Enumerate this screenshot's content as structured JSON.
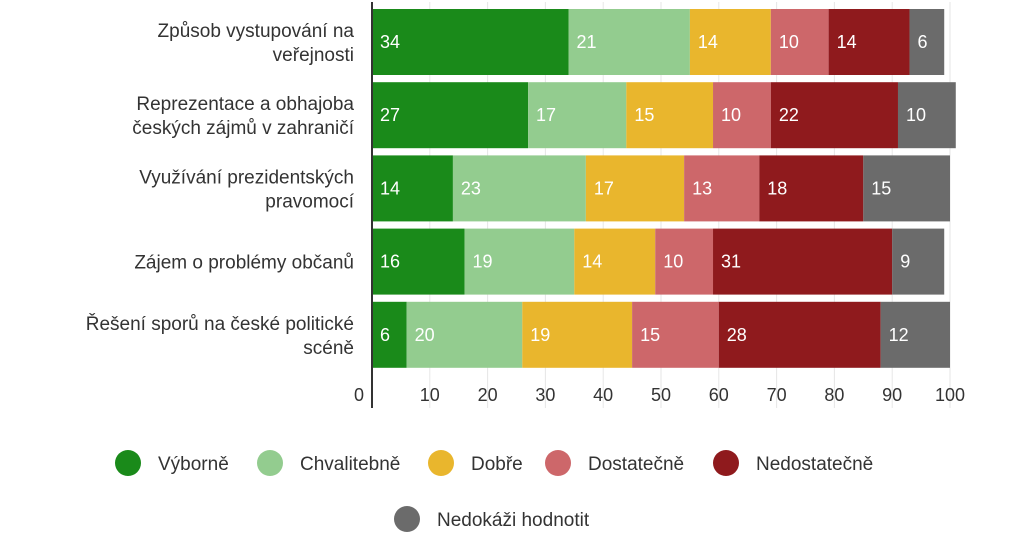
{
  "chart_data": {
    "type": "bar",
    "orientation": "horizontal",
    "stacked": true,
    "categories": [
      [
        "Způsob vystupování na",
        "veřejnosti"
      ],
      [
        "Reprezentace a obhajoba",
        "českých zájmů v zahraničí"
      ],
      [
        "Využívání prezidentských",
        "pravomocí"
      ],
      [
        "Zájem o problémy občanů"
      ],
      [
        "Řešení sporů na české politické",
        "scéně"
      ]
    ],
    "series": [
      {
        "name": "Výborně",
        "color": "#1a8a1a",
        "values": [
          34,
          27,
          14,
          16,
          6
        ]
      },
      {
        "name": "Chvalitebně",
        "color": "#93cc8f",
        "values": [
          21,
          17,
          23,
          19,
          20
        ]
      },
      {
        "name": "Dobře",
        "color": "#e9b62d",
        "values": [
          14,
          15,
          17,
          14,
          19
        ]
      },
      {
        "name": "Dostatečně",
        "color": "#cd676a",
        "values": [
          10,
          10,
          13,
          10,
          15
        ]
      },
      {
        "name": "Nedostatečně",
        "color": "#8f1a1d",
        "values": [
          14,
          22,
          18,
          31,
          28
        ]
      },
      {
        "name": "Nedokáži hodnotit",
        "color": "#6b6b6b",
        "values": [
          6,
          10,
          15,
          9,
          12
        ]
      }
    ],
    "x_ticks": [
      "0",
      "10",
      "20",
      "30",
      "40",
      "50",
      "60",
      "70",
      "80",
      "90",
      "100"
    ],
    "xlim": [
      0,
      100
    ],
    "grid": true,
    "legend_position": "bottom"
  }
}
